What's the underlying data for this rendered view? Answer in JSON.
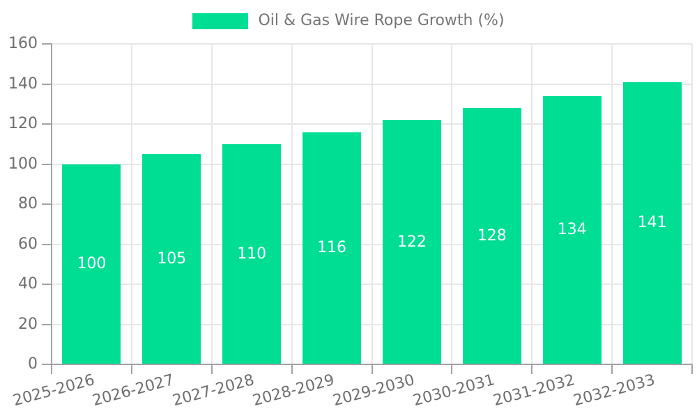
{
  "chart_data": {
    "type": "bar",
    "title": "",
    "legend_label": "Oil & Gas Wire Rope Growth (%)",
    "legend_position": "top-center",
    "categories": [
      "2025-2026",
      "2026-2027",
      "2027-2028",
      "2028-2029",
      "2029-2030",
      "2030-2031",
      "2031-2032",
      "2032-2033"
    ],
    "series": [
      {
        "name": "Oil & Gas Wire Rope Growth (%)",
        "values": [
          100,
          105,
          110,
          116,
          122,
          128,
          134,
          141
        ]
      }
    ],
    "value_labels_shown": true,
    "xlabel": "",
    "ylabel": "",
    "ylim": [
      0,
      160
    ],
    "yticks": [
      0,
      20,
      40,
      60,
      80,
      100,
      120,
      140,
      160
    ],
    "grid": "both",
    "x_label_rotation_deg": -15
  },
  "colors": {
    "bar": "#00DE94",
    "bar_value_text": "#FFFFFF",
    "grid": "#E7E7E7",
    "axis": "#A3A3A3",
    "tick_text": "#6E6E6E",
    "legend_text": "#757575",
    "background": "#FFFFFF"
  }
}
